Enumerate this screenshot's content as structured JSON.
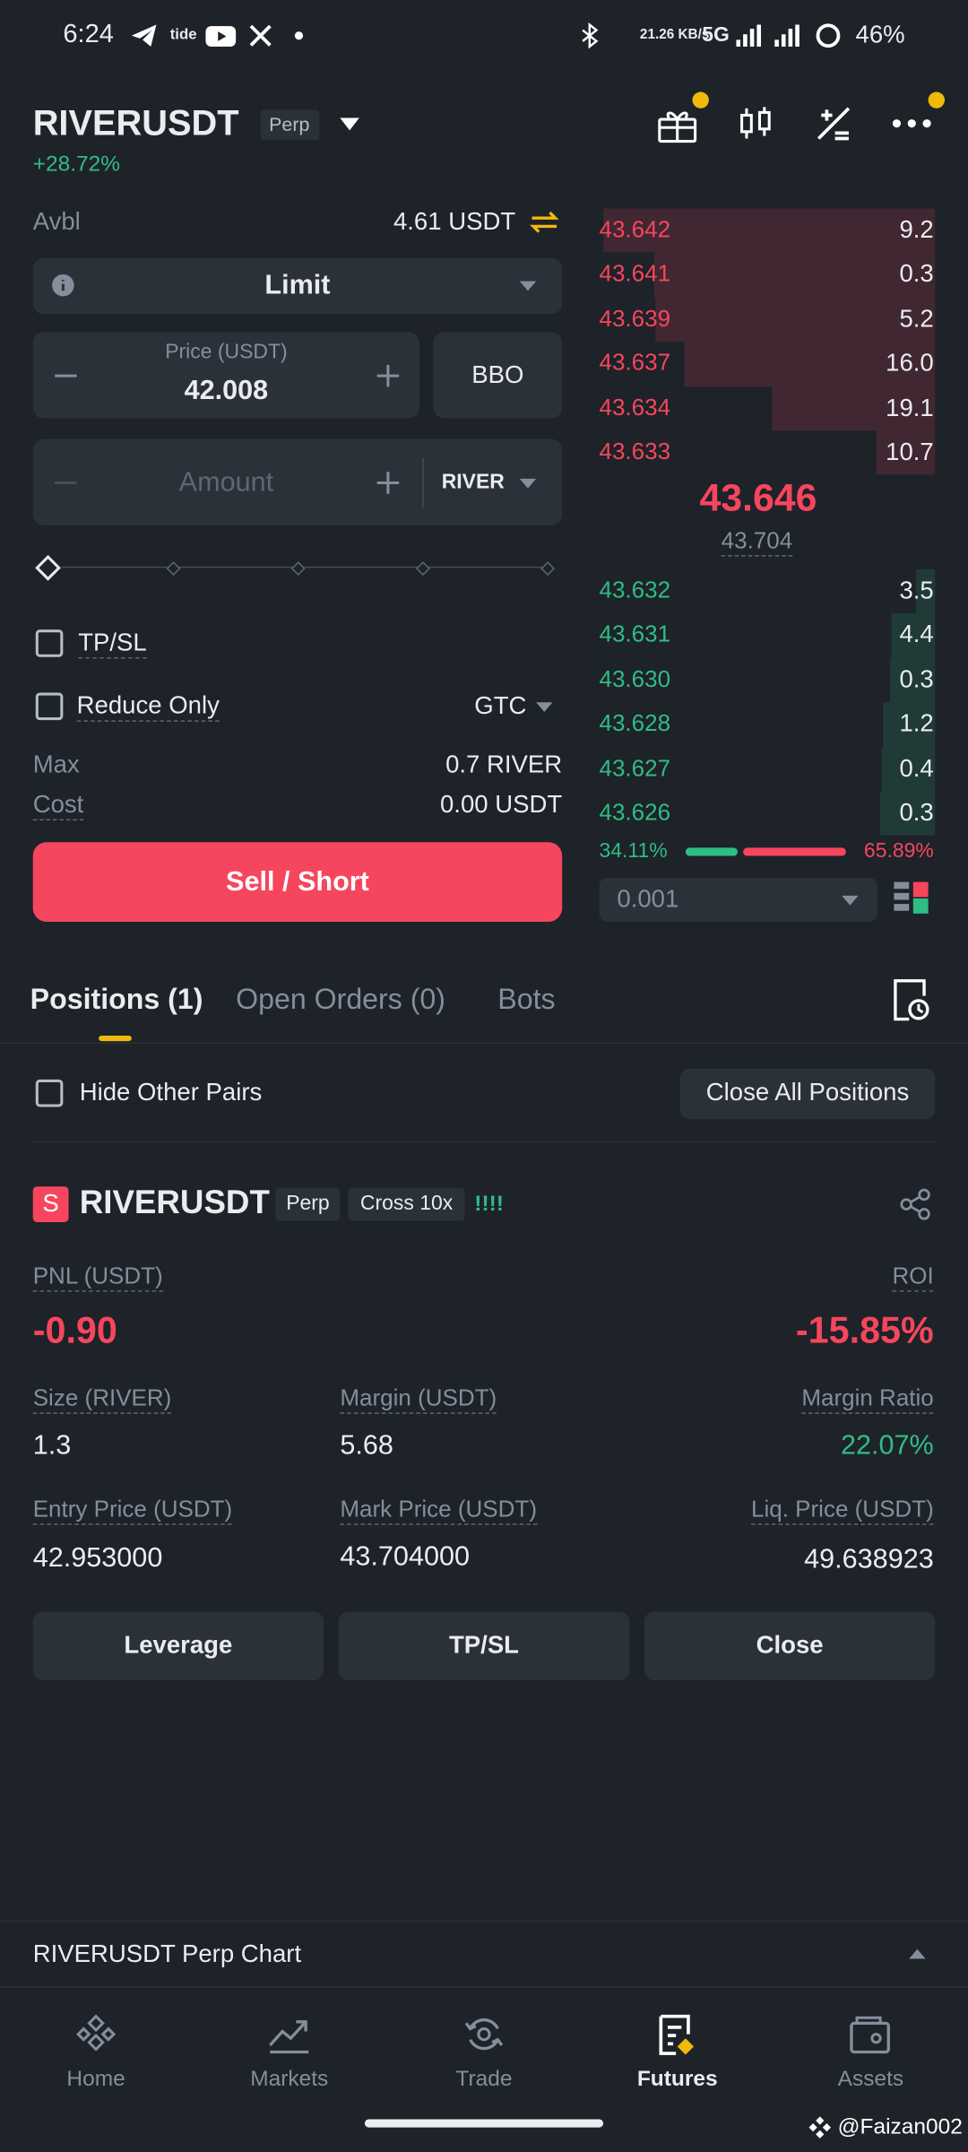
{
  "status_bar": {
    "time": "6:24",
    "app_label": "tide",
    "net_speed": "21.26 KB/s",
    "network": "5G",
    "battery": "46%"
  },
  "header": {
    "symbol": "RIVERUSDT",
    "badge": "Perp",
    "change": "+28.72%"
  },
  "order_form": {
    "avbl_label": "Avbl",
    "avbl_value": "4.61 USDT",
    "order_type": "Limit",
    "price_label": "Price (USDT)",
    "price": "42.008",
    "bbo": "BBO",
    "amount_placeholder": "Amount",
    "amount_unit": "RIVER",
    "tpsl": "TP/SL",
    "reduce_only": "Reduce Only",
    "time_in_force": "GTC",
    "max_label": "Max",
    "max_value": "0.7 RIVER",
    "cost_label": "Cost",
    "cost_value": "0.00 USDT",
    "submit": "Sell / Short"
  },
  "order_book": {
    "asks": [
      {
        "price": "43.642",
        "qty": "9.2"
      },
      {
        "price": "43.641",
        "qty": "0.3"
      },
      {
        "price": "43.639",
        "qty": "5.2"
      },
      {
        "price": "43.637",
        "qty": "16.0"
      },
      {
        "price": "43.634",
        "qty": "19.1"
      },
      {
        "price": "43.633",
        "qty": "10.7"
      }
    ],
    "mid_price": "43.646",
    "mark_price": "43.704",
    "bids": [
      {
        "price": "43.632",
        "qty": "3.5"
      },
      {
        "price": "43.631",
        "qty": "4.4"
      },
      {
        "price": "43.630",
        "qty": "0.3"
      },
      {
        "price": "43.628",
        "qty": "1.2"
      },
      {
        "price": "43.627",
        "qty": "0.4"
      },
      {
        "price": "43.626",
        "qty": "0.3"
      }
    ],
    "buy_ratio": "34.11%",
    "sell_ratio": "65.89%",
    "precision": "0.001"
  },
  "tabs": [
    "Positions (1)",
    "Open Orders (0)",
    "Bots"
  ],
  "positions_toolbar": {
    "hide_other_pairs": "Hide Other Pairs",
    "close_all": "Close All Positions"
  },
  "position": {
    "side": "S",
    "symbol": "RIVERUSDT",
    "badges": [
      "Perp",
      "Cross 10x"
    ],
    "risk": "!!!!",
    "fields": [
      {
        "label": "PNL (USDT)",
        "value": "-0.90"
      },
      {
        "label": "ROI",
        "value": "-15.85%"
      },
      {
        "label": "Size (RIVER)",
        "value": "1.3"
      },
      {
        "label": "Margin (USDT)",
        "value": "5.68"
      },
      {
        "label": "Margin Ratio",
        "value": "22.07%"
      },
      {
        "label": "Entry Price (USDT)",
        "value": "42.953000"
      },
      {
        "label": "Mark Price (USDT)",
        "value": "43.704000"
      },
      {
        "label": "Liq. Price (USDT)",
        "value": "49.638923"
      }
    ],
    "buttons": [
      "Leverage",
      "TP/SL",
      "Close"
    ]
  },
  "chart_panel": "RIVERUSDT Perp Chart",
  "nav": [
    "Home",
    "Markets",
    "Trade",
    "Futures",
    "Assets"
  ],
  "watermark": "@Faizan002"
}
